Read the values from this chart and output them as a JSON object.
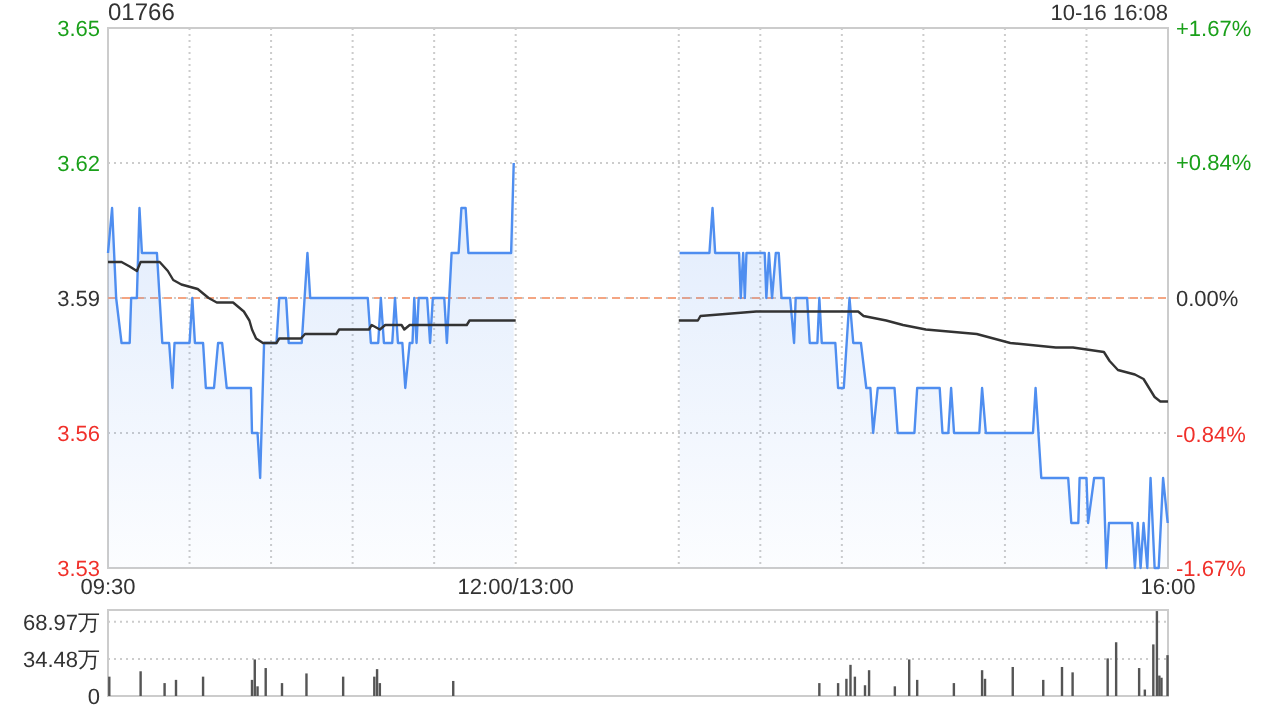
{
  "chart_data": [
    {
      "type": "area",
      "title": "01766",
      "annotations": [
        "10-16 16:08"
      ],
      "xlim": [
        9.5,
        16
      ],
      "xticks": [
        {
          "value": 9.5,
          "label": "09:30"
        },
        {
          "value": 10,
          "label": null
        },
        {
          "value": 10.5,
          "label": null
        },
        {
          "value": 11,
          "label": null
        },
        {
          "value": 11.5,
          "label": null
        },
        {
          "value": 12,
          "label": "12:00/13:00"
        },
        {
          "value": 13,
          "label": null
        },
        {
          "value": 13.5,
          "label": null
        },
        {
          "value": 14,
          "label": null
        },
        {
          "value": 14.5,
          "label": null
        },
        {
          "value": 15,
          "label": null
        },
        {
          "value": 15.5,
          "label": null
        },
        {
          "value": 16,
          "label": "16:00"
        }
      ],
      "ylim": [
        3.53,
        3.65
      ],
      "yticks": [
        3.53,
        3.56,
        3.59,
        3.62,
        3.65
      ],
      "y2lim": [
        -1.67,
        1.67
      ],
      "y2ticks": [
        {
          "value": -1.67,
          "label": "-1.67%"
        },
        {
          "value": -0.84,
          "label": "-0.84%"
        },
        {
          "value": 0,
          "label": "0.00%"
        },
        {
          "value": 0.84,
          "label": "+0.84%"
        },
        {
          "value": 1.67,
          "label": "+1.67%"
        }
      ],
      "grid": true,
      "ref_lines": [
        {
          "axis": "y",
          "value": 3.59,
          "color": "#f4a582",
          "line_style": "dashed"
        }
      ],
      "series": [
        {
          "type": "area",
          "color": "#4f8ef0",
          "x": [
            9.5,
            9.525,
            9.55,
            9.583,
            9.633,
            9.642,
            9.677,
            9.693,
            9.708,
            9.8,
            9.833,
            9.875,
            9.895,
            9.908,
            10,
            10.017,
            10.033,
            10.083,
            10.1,
            10.15,
            10.175,
            10.2,
            10.228,
            10.377,
            10.383,
            10.417,
            10.433,
            10.457,
            10.533,
            10.55,
            10.592,
            10.608,
            10.688,
            10.723,
            10.74,
            11.093,
            11.112,
            11.157,
            11.173,
            11.192,
            11.243,
            11.26,
            11.278,
            11.305,
            11.323,
            11.35,
            11.367,
            11.378,
            11.392,
            11.405,
            11.457,
            11.475,
            11.492,
            11.562,
            11.578,
            11.607,
            11.65,
            11.667,
            11.693,
            11.71,
            11.972,
            11.988,
            12.5,
            13.005,
            13.188,
            13.207,
            13.223,
            13.37,
            13.38,
            13.395,
            13.405,
            13.415,
            13.527,
            13.537,
            13.553,
            13.572,
            13.595,
            13.613,
            13.63,
            13.683,
            13.707,
            13.717,
            13.787,
            13.803,
            13.85,
            13.862,
            13.877,
            13.96,
            13.977,
            14.012,
            14.047,
            14.07,
            14.117,
            14.15,
            14.175,
            14.192,
            14.22,
            14.323,
            14.342,
            14.445,
            14.462,
            14.6,
            14.617,
            14.653,
            14.67,
            14.688,
            14.843,
            14.86,
            14.883,
            15.172,
            15.188,
            15.223,
            15.388,
            15.407,
            15.45,
            15.458,
            15.5,
            15.51,
            15.547,
            15.605,
            15.622,
            15.638,
            15.78,
            15.797,
            15.815,
            15.832,
            15.85,
            15.873,
            15.893,
            15.918,
            15.943,
            15.97,
            15.998
          ],
          "values": [
            3.6,
            3.61,
            3.59,
            3.58,
            3.58,
            3.59,
            3.59,
            3.61,
            3.6,
            3.6,
            3.58,
            3.58,
            3.57,
            3.58,
            3.58,
            3.59,
            3.58,
            3.58,
            3.57,
            3.57,
            3.58,
            3.58,
            3.57,
            3.57,
            3.56,
            3.56,
            3.55,
            3.58,
            3.58,
            3.59,
            3.59,
            3.58,
            3.58,
            3.6,
            3.59,
            3.59,
            3.58,
            3.58,
            3.59,
            3.58,
            3.58,
            3.59,
            3.58,
            3.58,
            3.57,
            3.58,
            3.58,
            3.59,
            3.58,
            3.59,
            3.59,
            3.58,
            3.59,
            3.59,
            3.58,
            3.6,
            3.6,
            3.61,
            3.61,
            3.6,
            3.6,
            3.62,
            null,
            3.6,
            3.6,
            3.61,
            3.6,
            3.6,
            3.59,
            3.6,
            3.59,
            3.6,
            3.6,
            3.59,
            3.6,
            3.59,
            3.6,
            3.6,
            3.59,
            3.59,
            3.58,
            3.59,
            3.59,
            3.58,
            3.58,
            3.59,
            3.58,
            3.58,
            3.57,
            3.57,
            3.59,
            3.58,
            3.58,
            3.57,
            3.57,
            3.56,
            3.57,
            3.57,
            3.56,
            3.56,
            3.57,
            3.57,
            3.56,
            3.56,
            3.57,
            3.56,
            3.56,
            3.57,
            3.56,
            3.56,
            3.57,
            3.55,
            3.55,
            3.54,
            3.54,
            3.55,
            3.55,
            3.54,
            3.55,
            3.55,
            3.53,
            3.54,
            3.54,
            3.53,
            3.54,
            3.53,
            3.54,
            3.53,
            3.55,
            3.53,
            3.53,
            3.55,
            3.54
          ]
        },
        {
          "type": "line",
          "color": "#333333",
          "x": [
            9.5,
            9.583,
            9.633,
            9.677,
            9.7,
            9.817,
            9.867,
            9.9,
            9.95,
            10.05,
            10.117,
            10.167,
            10.267,
            10.333,
            10.367,
            10.383,
            10.408,
            10.45,
            10.533,
            10.55,
            10.683,
            10.708,
            10.9,
            10.917,
            11.1,
            11.117,
            11.167,
            11.2,
            11.3,
            11.317,
            11.35,
            11.7,
            11.717,
            12,
            12.5,
            13,
            13.117,
            13.133,
            13.475,
            14.1,
            14.133,
            14.272,
            14.375,
            14.515,
            14.827,
            15.033,
            15.312,
            15.417,
            15.607,
            15.642,
            15.693,
            15.797,
            15.85,
            15.918,
            15.953,
            16
          ],
          "values": [
            3.598,
            3.598,
            3.597,
            3.596,
            3.598,
            3.598,
            3.596,
            3.594,
            3.593,
            3.592,
            3.59,
            3.589,
            3.589,
            3.587,
            3.585,
            3.583,
            3.581,
            3.58,
            3.58,
            3.581,
            3.581,
            3.582,
            3.582,
            3.583,
            3.583,
            3.584,
            3.583,
            3.584,
            3.584,
            3.583,
            3.584,
            3.584,
            3.585,
            3.585,
            null,
            3.585,
            3.585,
            3.586,
            3.587,
            3.587,
            3.586,
            3.585,
            3.584,
            3.583,
            3.582,
            3.58,
            3.579,
            3.579,
            3.578,
            3.576,
            3.574,
            3.573,
            3.572,
            3.568,
            3.567,
            3.567
          ]
        }
      ]
    },
    {
      "type": "bar",
      "color": "#555555",
      "xlim": [
        9.5,
        16
      ],
      "ylim": [
        0,
        80
      ],
      "yticks": [
        0,
        {
          "value": 34.48,
          "label": "34.48万"
        },
        {
          "value": 68.97,
          "label": "68.97万"
        }
      ],
      "grid": "y",
      "tick_labels": "y",
      "x": [
        9.508,
        9.7,
        9.847,
        9.917,
        10.083,
        10.383,
        10.4,
        10.417,
        10.467,
        10.567,
        10.717,
        10.942,
        11.133,
        11.15,
        11.167,
        11.617,
        13.862,
        13.977,
        14.028,
        14.053,
        14.08,
        14.142,
        14.167,
        14.325,
        14.413,
        14.462,
        14.687,
        14.86,
        14.878,
        15.048,
        15.235,
        15.35,
        15.415,
        15.63,
        15.682,
        15.823,
        15.858,
        15.91,
        15.932,
        15.947,
        15.96,
        15.997
      ],
      "values": [
        18,
        23,
        12,
        15,
        18,
        15,
        34,
        9,
        26,
        12,
        21,
        18,
        18,
        25,
        12,
        14,
        12,
        12,
        16,
        29,
        18,
        10,
        24,
        9,
        34,
        15,
        12,
        24,
        16,
        27,
        15,
        27,
        22,
        35,
        50,
        26,
        6,
        48,
        79,
        19,
        17,
        38
      ]
    }
  ]
}
